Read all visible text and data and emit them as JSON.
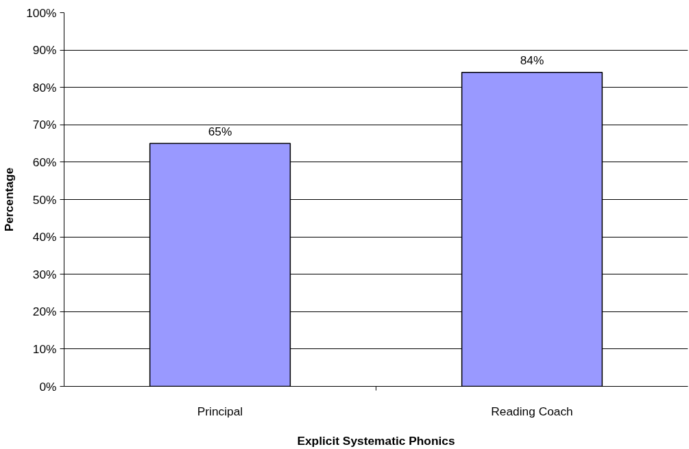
{
  "chart_data": {
    "type": "bar",
    "xlabel": "Explicit Systematic Phonics",
    "ylabel": "Percentage",
    "categories": [
      "Principal",
      "Reading Coach"
    ],
    "values": [
      65,
      84
    ],
    "value_labels": [
      "65%",
      "84%"
    ],
    "color": "#9999ff",
    "ylim": [
      0,
      100
    ],
    "yticks": [
      {
        "value": 0,
        "label": "0%"
      },
      {
        "value": 10,
        "label": "10%"
      },
      {
        "value": 20,
        "label": "20%"
      },
      {
        "value": 30,
        "label": "30%"
      },
      {
        "value": 40,
        "label": "40%"
      },
      {
        "value": 50,
        "label": "50%"
      },
      {
        "value": 60,
        "label": "60%"
      },
      {
        "value": 70,
        "label": "70%"
      },
      {
        "value": 80,
        "label": "80%"
      },
      {
        "value": 90,
        "label": "90%"
      },
      {
        "value": 100,
        "label": "100%"
      }
    ],
    "grid": "y"
  }
}
